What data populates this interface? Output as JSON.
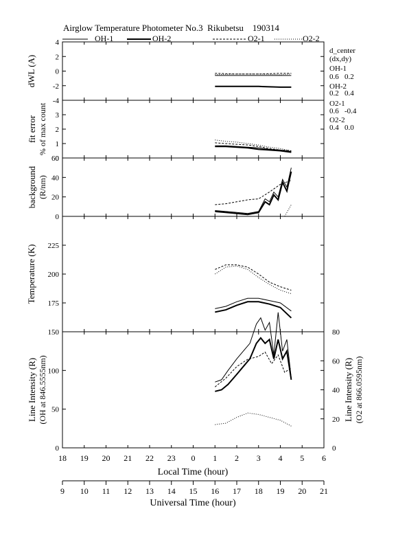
{
  "title": "Airglow Temperature Photometer No.3  Rikubetsu    190314",
  "legend": [
    {
      "label": "OH-1",
      "style": "thin-solid"
    },
    {
      "label": "OH-2",
      "style": "thick-solid"
    },
    {
      "label": "O2-1",
      "style": "dashed"
    },
    {
      "label": "O2-2",
      "style": "dotted"
    }
  ],
  "side_note": {
    "heading": "d_center",
    "subheading": "(dx,dy)",
    "entries": [
      {
        "name": "OH-1",
        "value": "0.6   0.2"
      },
      {
        "name": "OH-2",
        "value": "0.2   0.4"
      },
      {
        "name": "O2-1",
        "value": "0.6   -0.4"
      },
      {
        "name": "O2-2",
        "value": "0.4   0.0"
      }
    ]
  },
  "axes": {
    "local_label": "Local Time (hour)",
    "universal_label": "Universal Time (hour)",
    "local_ticks": [
      "18",
      "19",
      "20",
      "21",
      "22",
      "23",
      "0",
      "1",
      "2",
      "3",
      "4",
      "5",
      "6"
    ],
    "universal_ticks": [
      "9",
      "10",
      "11",
      "12",
      "13",
      "14",
      "15",
      "16",
      "17",
      "18",
      "19",
      "20",
      "21"
    ]
  },
  "chart_data": [
    {
      "type": "line",
      "panel": "dwl",
      "ylabel": "dWL (A)",
      "ylim": [
        -4,
        4
      ],
      "yticks": [
        "4",
        "2",
        "0",
        "-2",
        "-4"
      ],
      "x_unit": "Universal Time (hour)",
      "series": [
        {
          "name": "OH-1",
          "x": [
            16.0,
            17.0,
            18.0,
            19.0,
            19.5
          ],
          "y": [
            -0.6,
            -0.6,
            -0.6,
            -0.6,
            -0.6
          ]
        },
        {
          "name": "OH-2",
          "x": [
            16.0,
            17.0,
            18.0,
            19.0,
            19.5
          ],
          "y": [
            -2.1,
            -2.1,
            -2.1,
            -2.2,
            -2.2
          ]
        },
        {
          "name": "O2-1",
          "x": [
            16.0,
            17.0,
            18.0,
            19.0,
            19.5
          ],
          "y": [
            -0.3,
            -0.4,
            -0.4,
            -0.3,
            -0.3
          ]
        },
        {
          "name": "O2-2",
          "x": [
            16.0,
            17.0,
            18.0,
            19.0,
            19.5
          ],
          "y": [
            -0.5,
            -0.4,
            -0.4,
            -0.5,
            -0.4
          ]
        }
      ]
    },
    {
      "type": "line",
      "panel": "fit-error",
      "ylabel": "fit error",
      "ylabel2": "% of max count",
      "ylim": [
        0,
        4
      ],
      "yticks": [
        "3",
        "2",
        "1",
        "0"
      ],
      "x_unit": "Universal Time (hour)",
      "series": [
        {
          "name": "OH-1",
          "x": [
            16.0,
            16.5,
            17.0,
            17.5,
            18.0,
            18.5,
            19.0,
            19.5
          ],
          "y": [
            0.85,
            0.85,
            0.8,
            0.75,
            0.7,
            0.6,
            0.55,
            0.45
          ]
        },
        {
          "name": "OH-2",
          "x": [
            16.0,
            16.5,
            17.0,
            17.5,
            18.0,
            18.5,
            19.0,
            19.5
          ],
          "y": [
            0.8,
            0.8,
            0.75,
            0.7,
            0.6,
            0.55,
            0.5,
            0.4
          ]
        },
        {
          "name": "O2-1",
          "x": [
            16.0,
            16.5,
            17.0,
            17.5,
            18.0,
            18.5,
            19.0,
            19.5
          ],
          "y": [
            1.05,
            1.0,
            0.95,
            0.9,
            0.8,
            0.65,
            0.55,
            0.5
          ]
        },
        {
          "name": "O2-2",
          "x": [
            16.0,
            16.5,
            17.0,
            17.5,
            18.0,
            18.5,
            19.0,
            19.5
          ],
          "y": [
            1.25,
            1.15,
            1.1,
            1.0,
            0.9,
            0.75,
            0.65,
            0.5
          ]
        }
      ]
    },
    {
      "type": "line",
      "panel": "background",
      "ylabel": "background",
      "ylabel2": "(R/nm)",
      "ylim": [
        0,
        60
      ],
      "yticks": [
        "60",
        "40",
        "20",
        "0"
      ],
      "x_unit": "Universal Time (hour)",
      "series": [
        {
          "name": "OH-1",
          "x": [
            16.0,
            16.5,
            17.0,
            17.5,
            18.0,
            18.3,
            18.5,
            18.7,
            18.9,
            19.1,
            19.3,
            19.5
          ],
          "y": [
            6,
            5,
            4,
            3,
            5,
            18,
            15,
            25,
            20,
            38,
            30,
            50
          ]
        },
        {
          "name": "OH-2",
          "x": [
            16.0,
            16.5,
            17.0,
            17.5,
            18.0,
            18.3,
            18.5,
            18.7,
            18.9,
            19.1,
            19.3,
            19.5
          ],
          "y": [
            5,
            4,
            3,
            2,
            4,
            15,
            12,
            22,
            17,
            35,
            26,
            46
          ]
        },
        {
          "name": "O2-1",
          "x": [
            16.0,
            16.5,
            17.0,
            17.5,
            18.0,
            18.5,
            19.0,
            19.5
          ],
          "y": [
            12,
            13,
            15,
            17,
            18,
            25,
            33,
            37
          ]
        },
        {
          "name": "O2-2",
          "x": [
            19.2,
            19.5
          ],
          "y": [
            0,
            12
          ]
        }
      ]
    },
    {
      "type": "line",
      "panel": "temperature",
      "ylabel": "Temperature (K)",
      "ylim": [
        150,
        250
      ],
      "yticks": [
        "225",
        "200",
        "175"
      ],
      "x_unit": "Universal Time (hour)",
      "series": [
        {
          "name": "OH-1",
          "x": [
            16.0,
            16.5,
            17.0,
            17.5,
            18.0,
            18.5,
            19.0,
            19.5
          ],
          "y": [
            170,
            172,
            176,
            179,
            179,
            177,
            175,
            168
          ]
        },
        {
          "name": "OH-2",
          "x": [
            16.0,
            16.5,
            17.0,
            17.5,
            18.0,
            18.5,
            19.0,
            19.5
          ],
          "y": [
            167,
            169,
            173,
            176,
            176,
            174,
            171,
            162
          ]
        },
        {
          "name": "O2-1",
          "x": [
            16.0,
            16.5,
            17.0,
            17.5,
            18.0,
            18.5,
            19.0,
            19.5
          ],
          "y": [
            204,
            208,
            208,
            206,
            200,
            193,
            189,
            186
          ]
        },
        {
          "name": "O2-2",
          "x": [
            16.0,
            16.5,
            17.0,
            17.5,
            18.0,
            18.5,
            19.0,
            19.5
          ],
          "y": [
            200,
            206,
            207,
            204,
            197,
            191,
            186,
            183
          ]
        }
      ]
    },
    {
      "type": "line",
      "panel": "line-intensity",
      "ylabel": "Line Intensity (R)",
      "ylabel2": "(OH at 846.5555nm)",
      "ylabel_right": "Line Intensity (R)",
      "ylabel_right2": "(O2 at 866.0595nm)",
      "ylim": [
        0,
        150
      ],
      "ylim_right": [
        0,
        80
      ],
      "yticks": [
        "150",
        "100",
        "50",
        "0"
      ],
      "yticks_right": [
        "80",
        "60",
        "40",
        "20",
        "0"
      ],
      "x_unit": "Universal Time (hour)",
      "series": [
        {
          "name": "OH-1",
          "axis": "left",
          "x": [
            16.0,
            16.3,
            16.6,
            17.0,
            17.3,
            17.6,
            17.9,
            18.1,
            18.3,
            18.5,
            18.7,
            18.9,
            19.1,
            19.3,
            19.5
          ],
          "y": [
            85,
            88,
            100,
            115,
            125,
            135,
            160,
            168,
            152,
            162,
            120,
            175,
            125,
            140,
            90
          ]
        },
        {
          "name": "OH-2",
          "axis": "left",
          "x": [
            16.0,
            16.3,
            16.6,
            17.0,
            17.3,
            17.6,
            17.9,
            18.1,
            18.3,
            18.5,
            18.7,
            18.9,
            19.1,
            19.3,
            19.5
          ],
          "y": [
            73,
            75,
            82,
            95,
            105,
            115,
            135,
            142,
            135,
            140,
            115,
            140,
            115,
            125,
            88
          ]
        },
        {
          "name": "O2-1",
          "axis": "right",
          "x": [
            16.0,
            16.5,
            17.0,
            17.5,
            18.0,
            18.3,
            18.6,
            18.9,
            19.2,
            19.5
          ],
          "y": [
            42,
            48,
            56,
            61,
            63,
            66,
            58,
            64,
            52,
            55
          ]
        },
        {
          "name": "O2-2",
          "axis": "right",
          "x": [
            16.0,
            16.5,
            17.0,
            17.5,
            18.0,
            18.5,
            19.0,
            19.5
          ],
          "y": [
            16,
            17,
            21,
            24,
            23,
            21,
            19,
            15
          ]
        }
      ]
    }
  ]
}
